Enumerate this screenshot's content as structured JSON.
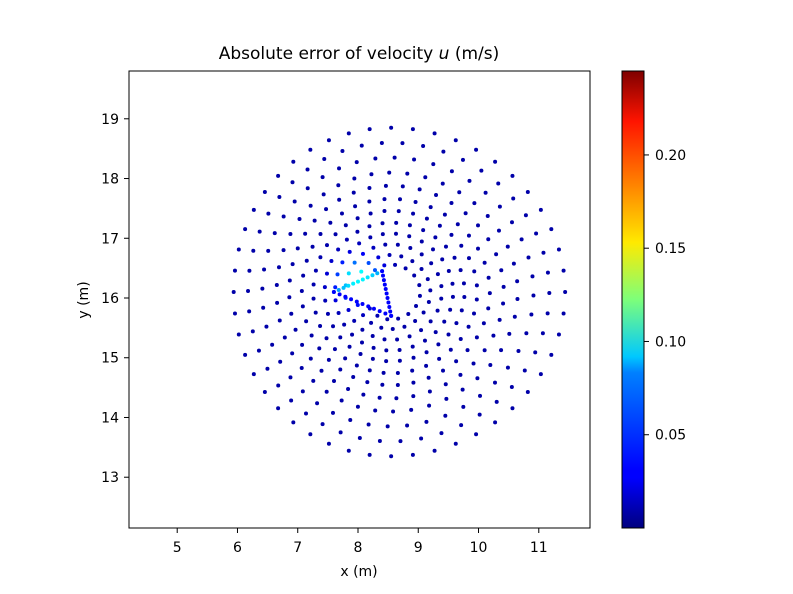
{
  "chart_data": {
    "type": "scatter",
    "title": "Absolute error of velocity u (m/s)",
    "title_prefix": "Absolute error of velocity ",
    "title_var": "u",
    "title_suffix": " (m/s)",
    "xlabel": "x (m)",
    "ylabel": "y (m)",
    "xlim": [
      4.2,
      11.85
    ],
    "ylim": [
      12.15,
      19.8
    ],
    "x_ticks": [
      5,
      6,
      7,
      8,
      9,
      10,
      11
    ],
    "y_ticks": [
      13,
      14,
      15,
      16,
      17,
      18,
      19
    ],
    "grid": false,
    "colormap": "jet",
    "colorbar": {
      "range": [
        0.0,
        0.245
      ],
      "ticks": [
        0.05,
        0.1,
        0.15,
        0.2
      ],
      "tick_labels": [
        "0.05",
        "0.10",
        "0.15",
        "0.20"
      ],
      "placement": "right"
    },
    "point_cloud": {
      "description_center": [
        8.55,
        16.1
      ],
      "rings": [
        {
          "radius": 2.75,
          "points": 48
        },
        {
          "radius": 2.5,
          "points": 46
        },
        {
          "radius": 2.25,
          "points": 44
        },
        {
          "radius": 2.0,
          "points": 42
        },
        {
          "radius": 1.78,
          "points": 40
        },
        {
          "radius": 1.56,
          "points": 38
        },
        {
          "radius": 1.36,
          "points": 36
        },
        {
          "radius": 1.16,
          "points": 32
        },
        {
          "radius": 0.98,
          "points": 28
        },
        {
          "radius": 0.8,
          "points": 24
        },
        {
          "radius": 0.62,
          "points": 20
        },
        {
          "radius": 0.46,
          "points": 16
        }
      ],
      "obstacle_triangle": [
        [
          7.6,
          16.1
        ],
        [
          8.4,
          16.45
        ],
        [
          8.55,
          15.7
        ]
      ],
      "max_error_near_obstacle": 0.1,
      "typical_error": 0.01
    },
    "colors": {
      "low": "#00008f",
      "high": "#800000",
      "axis": "#000000"
    }
  }
}
